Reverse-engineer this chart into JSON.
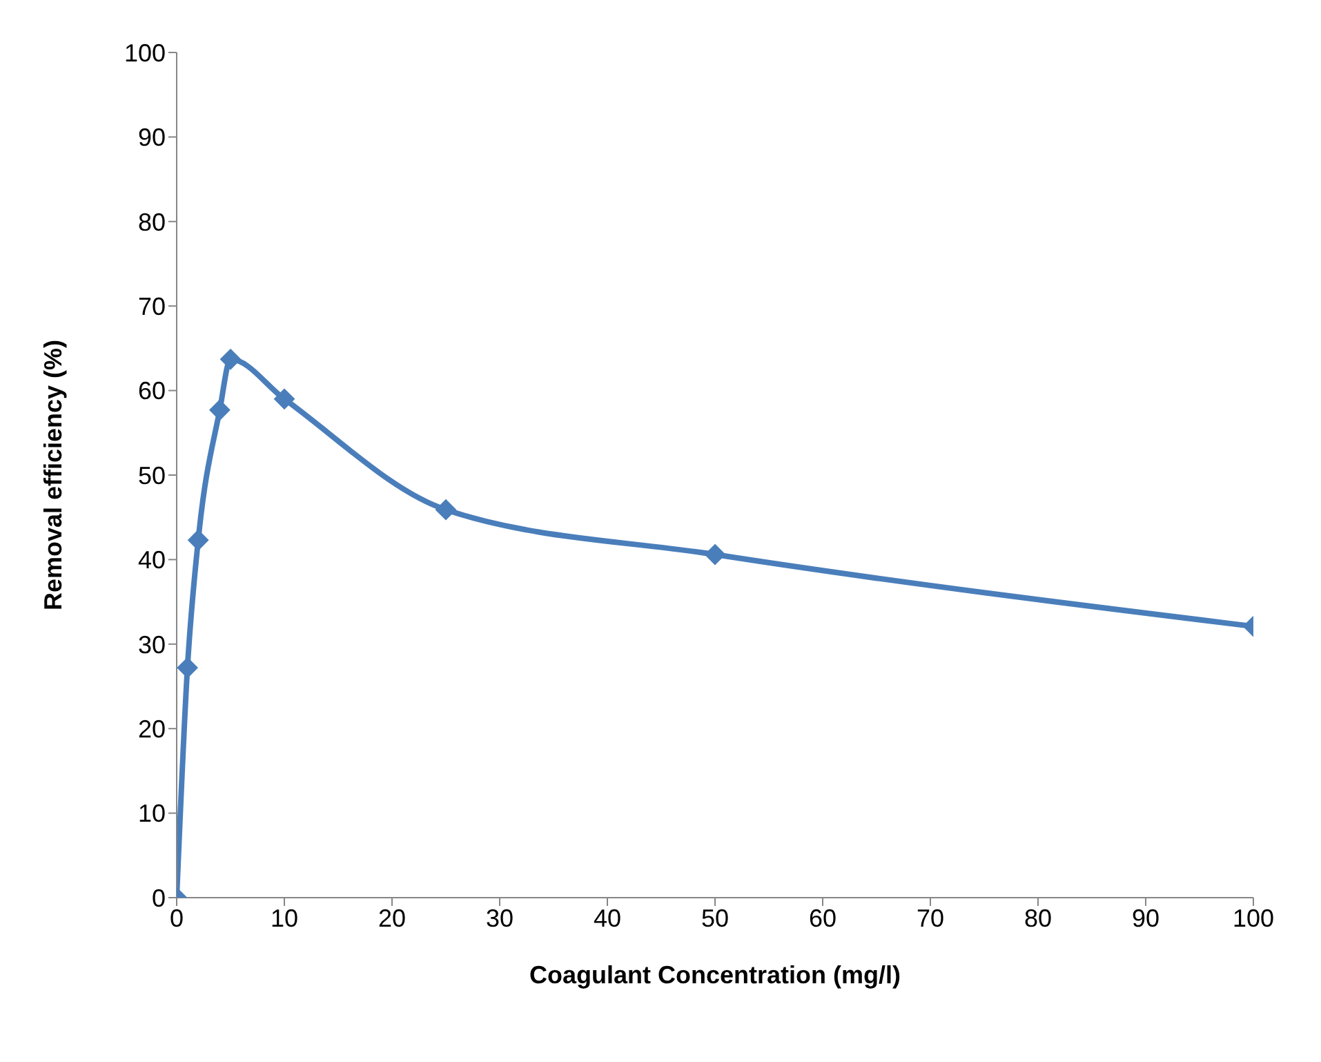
{
  "chart_data": {
    "type": "line",
    "xlabel": "Coagulant Concentration (mg/l)",
    "ylabel": "Removal efficiency (%)",
    "x": [
      0,
      1,
      2,
      4,
      5,
      10,
      25,
      50,
      100
    ],
    "series": [
      {
        "color": "#4a7ebb",
        "values": [
          0,
          27.2,
          42.3,
          57.7,
          63.7,
          59,
          45.9,
          40.6,
          32.1
        ]
      }
    ],
    "xlim": [
      0,
      100
    ],
    "xticks": [
      0,
      10,
      20,
      30,
      40,
      50,
      60,
      70,
      80,
      90,
      100
    ],
    "ylim": [
      0,
      100
    ],
    "yticks": [
      0,
      10,
      20,
      30,
      40,
      50,
      60,
      70,
      80,
      90,
      100
    ],
    "marker": "diamond",
    "line_style": "solid",
    "grid": false,
    "legend": false
  }
}
